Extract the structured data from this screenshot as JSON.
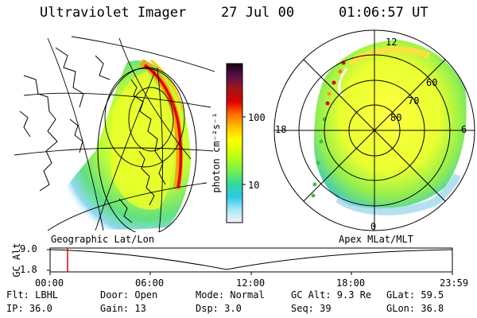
{
  "header": {
    "title": "Ultraviolet Imager",
    "date": "27 Jul 00",
    "time": "01:06:57 UT"
  },
  "left_panel": {
    "caption": "Geographic Lat/Lon"
  },
  "right_panel": {
    "caption": "Apex MLat/MLT",
    "mlt_labels": [
      "12",
      "18",
      "6",
      "0"
    ],
    "mlat_labels": [
      "60",
      "70",
      "80"
    ]
  },
  "colorbar": {
    "label": "photon cm⁻²s⁻¹",
    "ticks": [
      "100",
      "10"
    ],
    "colors": [
      "#1a0010",
      "#3a0030",
      "#6a1040",
      "#a01010",
      "#e00000",
      "#ff6000",
      "#ff9a00",
      "#ffd000",
      "#ffff00",
      "#c8ff00",
      "#80ff40",
      "#30e0a0",
      "#20c8e0",
      "#a0e8f8",
      "#f0f0f8"
    ]
  },
  "timeline": {
    "ylabel": "GC Alt",
    "yticks": [
      "9.0",
      "1.8"
    ],
    "xticks": [
      "00:00",
      "06:00",
      "12:00",
      "18:00",
      "23:59"
    ],
    "marker_fraction": 0.046,
    "marker_color": "#e00000"
  },
  "info": {
    "row1": [
      "Flt: LBHL",
      "Door: Open",
      "Mode: Normal",
      "GC Alt: 9.3 Re",
      "GLat: 59.5"
    ],
    "row2": [
      "IP: 36.0",
      "Gain: 13",
      "Dsp:    3.0",
      "Seq: 39",
      "GLon:  36.8"
    ]
  }
}
